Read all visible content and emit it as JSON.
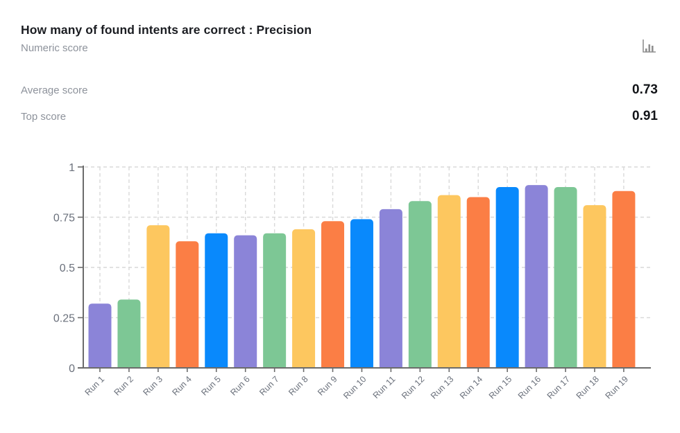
{
  "header": {
    "title": "How many of found intents are correct : Precision",
    "subtitle": "Numeric score"
  },
  "stats": [
    {
      "label": "Average score",
      "value": "0.73"
    },
    {
      "label": "Top score",
      "value": "0.91"
    }
  ],
  "icons": {
    "chart_type": "bar-chart-icon"
  },
  "colors": {
    "background": "#ffffff",
    "title_text": "#1b1d22",
    "muted_text": "#8d929b",
    "value_text": "#121418",
    "axis": "#6b6b6b",
    "tick_text": "#6a707b",
    "gridline": "#d9d9d9",
    "icon_gray": "#8f8f8f",
    "bar_palette": [
      "#8b84d8",
      "#7dc795",
      "#fdc75f",
      "#fb7e45",
      "#0989fc"
    ]
  },
  "chart_data": {
    "type": "bar",
    "title": "How many of found intents are correct : Precision",
    "subtitle": "Numeric score",
    "categories": [
      "Run 1",
      "Run 2",
      "Run 3",
      "Run 4",
      "Run 5",
      "Run 6",
      "Run 7",
      "Run 8",
      "Run 9",
      "Run 10",
      "Run 11",
      "Run 12",
      "Run 13",
      "Run 14",
      "Run 15",
      "Run 16",
      "Run 17",
      "Run 18",
      "Run 19"
    ],
    "values": [
      0.32,
      0.34,
      0.71,
      0.63,
      0.67,
      0.66,
      0.67,
      0.69,
      0.73,
      0.74,
      0.79,
      0.83,
      0.86,
      0.85,
      0.9,
      0.91,
      0.9,
      0.81,
      0.88
    ],
    "average_score": 0.73,
    "top_score": 0.91,
    "xlabel": "",
    "ylabel": "",
    "ylim": [
      0,
      1
    ],
    "yticks": [
      0,
      0.25,
      0.5,
      0.75,
      1
    ],
    "ytick_labels": [
      "0",
      "0.25",
      "0.5",
      "0.75",
      "1"
    ],
    "grid": true,
    "grid_style": "dashed",
    "legend_position": "none",
    "bar_colors_cycle": [
      "#8b84d8",
      "#7dc795",
      "#fdc75f",
      "#fb7e45",
      "#0989fc"
    ]
  }
}
